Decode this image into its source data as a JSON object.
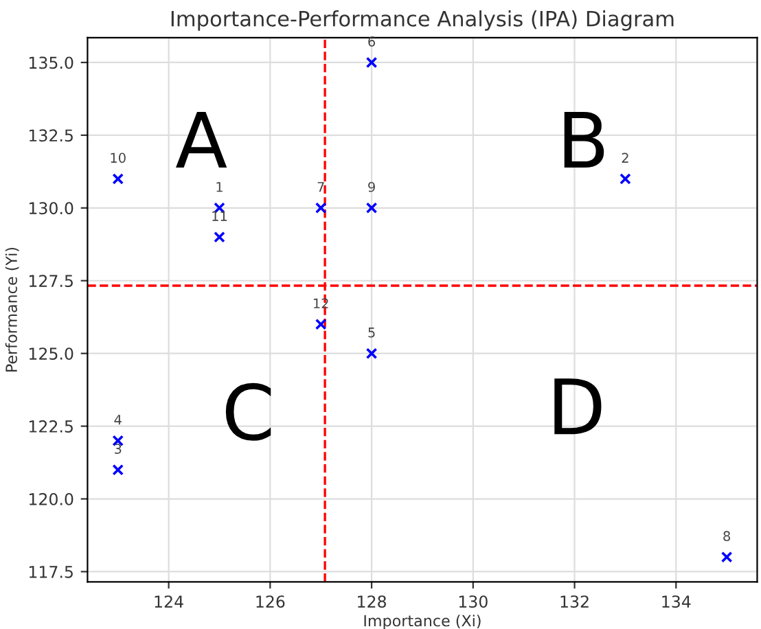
{
  "chart_data": {
    "type": "scatter",
    "title": "Importance-Performance Analysis (IPA) Diagram",
    "xlabel": "Importance (Xi)",
    "ylabel": "Performance (Yi)",
    "series": [
      {
        "color": "#0000ff",
        "x": [
          125,
          133,
          123,
          123,
          128,
          128,
          127,
          135,
          128,
          123,
          125,
          127
        ],
        "values": [
          130,
          131,
          121,
          122,
          125,
          135,
          130,
          118,
          130,
          131,
          129,
          126
        ]
      }
    ],
    "marker": "cross",
    "xlim": [
      122.4,
      135.6
    ],
    "xticks": [
      124,
      126,
      128,
      130,
      132,
      134
    ],
    "ylim": [
      117.15,
      135.85
    ],
    "yticks": [
      {
        "value": 117.5,
        "label": "117.5"
      },
      {
        "value": 120,
        "label": "120.0"
      },
      {
        "value": 122.5,
        "label": "122.5"
      },
      {
        "value": 125,
        "label": "125.0"
      },
      {
        "value": 127.5,
        "label": "127.5"
      },
      {
        "value": 130,
        "label": "130.0"
      },
      {
        "value": 132.5,
        "label": "132.5"
      },
      {
        "value": 135,
        "label": "135.0"
      }
    ],
    "ref_lines": [
      {
        "axis": "x",
        "value": 127.08,
        "color": "#ff0000",
        "line_style": "dashed"
      },
      {
        "axis": "y",
        "value": 127.33,
        "color": "#ff0000",
        "line_style": "dashed"
      }
    ],
    "annotations": [
      "A",
      "B",
      "C",
      "D",
      {
        "text": "1",
        "x": 125,
        "y": 130
      },
      {
        "text": "2",
        "x": 133,
        "y": 131
      },
      {
        "text": "3",
        "x": 123,
        "y": 121
      },
      {
        "text": "4",
        "x": 123,
        "y": 122
      },
      {
        "text": "5",
        "x": 128,
        "y": 125
      },
      {
        "text": "6",
        "x": 128,
        "y": 135
      },
      {
        "text": "7",
        "x": 127,
        "y": 130
      },
      {
        "text": "8",
        "x": 135,
        "y": 118
      },
      {
        "text": "9",
        "x": 128,
        "y": 130
      },
      {
        "text": "10",
        "x": 123,
        "y": 131
      },
      {
        "text": "11",
        "x": 125,
        "y": 129
      },
      {
        "text": "12",
        "x": 127,
        "y": 126
      }
    ],
    "grid": true
  }
}
